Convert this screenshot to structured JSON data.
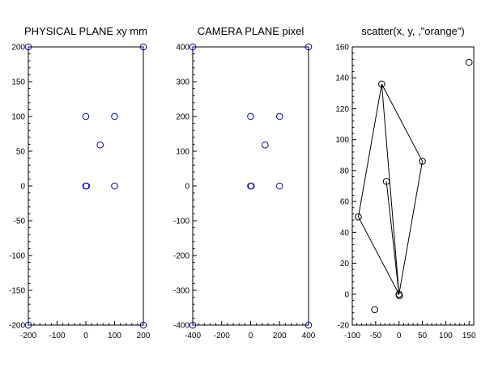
{
  "chart_data": [
    {
      "type": "scatter",
      "title": "PHYSICAL PLANE xy mm",
      "xlim": [
        -200,
        200
      ],
      "ylim": [
        -200,
        200
      ],
      "xticks": [
        -200,
        -100,
        0,
        100,
        200
      ],
      "yticks": [
        -200,
        -150,
        -100,
        -50,
        0,
        50,
        100,
        150,
        200
      ],
      "marker_color": "#0000b0",
      "points": [
        {
          "x": -200,
          "y": 200
        },
        {
          "x": 200,
          "y": 200
        },
        {
          "x": -200,
          "y": -200
        },
        {
          "x": 200,
          "y": -200
        },
        {
          "x": 0,
          "y": 100
        },
        {
          "x": 100,
          "y": 100
        },
        {
          "x": 50,
          "y": 59
        },
        {
          "x": 0,
          "y": 0
        },
        {
          "x": 2,
          "y": 0
        },
        {
          "x": 100,
          "y": 0
        }
      ],
      "lines": []
    },
    {
      "type": "scatter",
      "title": "CAMERA PLANE pixel",
      "xlim": [
        -400,
        400
      ],
      "ylim": [
        -400,
        400
      ],
      "xticks": [
        -400,
        -200,
        0,
        200,
        400
      ],
      "yticks": [
        -400,
        -300,
        -200,
        -100,
        0,
        100,
        200,
        300,
        400
      ],
      "marker_color": "#0000b0",
      "points": [
        {
          "x": -400,
          "y": 400
        },
        {
          "x": 400,
          "y": 400
        },
        {
          "x": -400,
          "y": -400
        },
        {
          "x": 400,
          "y": -400
        },
        {
          "x": 0,
          "y": 200
        },
        {
          "x": 200,
          "y": 200
        },
        {
          "x": 100,
          "y": 118
        },
        {
          "x": 0,
          "y": 0
        },
        {
          "x": 4,
          "y": 0
        },
        {
          "x": 200,
          "y": 0
        }
      ],
      "lines": []
    },
    {
      "type": "scatter",
      "title": "scatter(x, y, ,\"orange\")",
      "xlim": [
        -100,
        160
      ],
      "ylim": [
        -20,
        160
      ],
      "xticks": [
        -100,
        -50,
        0,
        50,
        100,
        150
      ],
      "yticks": [
        -20,
        0,
        20,
        40,
        60,
        80,
        100,
        120,
        140,
        160
      ],
      "marker_color": "#000000",
      "points": [
        {
          "x": 150,
          "y": 150
        },
        {
          "x": -37,
          "y": 136
        },
        {
          "x": -27,
          "y": 73
        },
        {
          "x": 50,
          "y": 86
        },
        {
          "x": -87,
          "y": 50
        },
        {
          "x": 0,
          "y": 0
        },
        {
          "x": 1,
          "y": -1
        },
        {
          "x": -52,
          "y": -10
        }
      ],
      "lines": [
        [
          [
            -37,
            136
          ],
          [
            50,
            86
          ],
          [
            0,
            0
          ],
          [
            -87,
            50
          ],
          [
            -37,
            136
          ],
          [
            0,
            0
          ]
        ],
        [
          [
            -27,
            73
          ],
          [
            0,
            0
          ]
        ]
      ]
    }
  ]
}
